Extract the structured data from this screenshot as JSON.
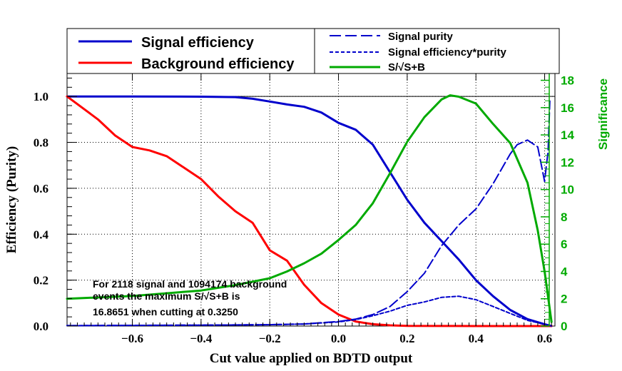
{
  "chart_data": {
    "type": "line",
    "title": "",
    "xlabel": "Cut value applied on BDTD output",
    "ylabel": "Efficiency (Purity)",
    "ylabel_right": "Significance",
    "xlim": [
      -0.79,
      0.63
    ],
    "ylim": [
      0,
      1.1
    ],
    "ylim_right": [
      0,
      18.5
    ],
    "x_ticks": [
      -0.6,
      -0.4,
      -0.2,
      0.0,
      0.2,
      0.4,
      0.6
    ],
    "x_tick_labels": [
      "−0.6",
      "−0.4",
      "−0.2",
      "0.0",
      "0.2",
      "0.4",
      "0.6"
    ],
    "y_ticks": [
      0.0,
      0.2,
      0.4,
      0.6,
      0.8,
      1.0
    ],
    "y_tick_labels": [
      "0.0",
      "0.2",
      "0.4",
      "0.6",
      "0.8",
      "1.0"
    ],
    "y_right_ticks": [
      0,
      2,
      4,
      6,
      8,
      10,
      12,
      14,
      16,
      18
    ],
    "y_right_tick_labels": [
      "0",
      "2",
      "4",
      "6",
      "8",
      "10",
      "12",
      "14",
      "16",
      "18"
    ],
    "grid": true,
    "reference_line_y": 1.0,
    "legend": [
      {
        "label": "Signal efficiency",
        "color": "#0000cc",
        "style": "solid"
      },
      {
        "label": "Background efficiency",
        "color": "#ff0000",
        "style": "solid"
      },
      {
        "label": "Signal purity",
        "color": "#0000cc",
        "style": "longdash"
      },
      {
        "label": "Signal efficiency*purity",
        "color": "#0000cc",
        "style": "shortdash"
      },
      {
        "label": "S/√S+B",
        "color": "#00aa00",
        "style": "solid"
      }
    ],
    "annotation": [
      "For 2118 signal and 1094174 background",
      "events the maximum S/√S+B is",
      "16.8651 when cutting at 0.3250"
    ],
    "series": [
      {
        "name": "Signal efficiency",
        "axis": "left",
        "color": "#0000cc",
        "x": [
          -0.79,
          -0.6,
          -0.4,
          -0.3,
          -0.25,
          -0.2,
          -0.15,
          -0.1,
          -0.05,
          0.0,
          0.05,
          0.1,
          0.15,
          0.2,
          0.25,
          0.3,
          0.35,
          0.4,
          0.45,
          0.5,
          0.55,
          0.6,
          0.62
        ],
        "y": [
          1.0,
          1.0,
          0.999,
          0.997,
          0.99,
          0.978,
          0.965,
          0.955,
          0.93,
          0.885,
          0.855,
          0.79,
          0.67,
          0.55,
          0.45,
          0.37,
          0.29,
          0.2,
          0.13,
          0.07,
          0.03,
          0.008,
          0.0
        ]
      },
      {
        "name": "Background efficiency",
        "axis": "left",
        "color": "#ff0000",
        "x": [
          -0.79,
          -0.7,
          -0.65,
          -0.6,
          -0.55,
          -0.5,
          -0.45,
          -0.4,
          -0.35,
          -0.3,
          -0.25,
          -0.2,
          -0.15,
          -0.1,
          -0.05,
          0.0,
          0.05,
          0.1,
          0.15,
          0.2,
          0.3,
          0.4,
          0.5,
          0.62
        ],
        "y": [
          1.0,
          0.9,
          0.83,
          0.78,
          0.765,
          0.74,
          0.69,
          0.64,
          0.565,
          0.5,
          0.45,
          0.33,
          0.285,
          0.18,
          0.1,
          0.05,
          0.02,
          0.008,
          0.003,
          0.001,
          0.0003,
          0.0001,
          0.0,
          0.0
        ]
      },
      {
        "name": "Signal purity",
        "axis": "left",
        "color": "#0000cc",
        "x": [
          -0.79,
          -0.6,
          -0.4,
          -0.2,
          -0.1,
          0.0,
          0.05,
          0.1,
          0.15,
          0.2,
          0.25,
          0.3,
          0.35,
          0.4,
          0.45,
          0.5,
          0.52,
          0.55,
          0.58,
          0.6,
          0.605,
          0.61,
          0.615
        ],
        "y": [
          0.002,
          0.003,
          0.004,
          0.006,
          0.009,
          0.02,
          0.03,
          0.05,
          0.085,
          0.15,
          0.23,
          0.35,
          0.44,
          0.51,
          0.62,
          0.75,
          0.79,
          0.81,
          0.78,
          0.63,
          0.7,
          0.76,
          0.98
        ]
      },
      {
        "name": "Signal efficiency*purity",
        "axis": "left",
        "color": "#0000cc",
        "x": [
          -0.79,
          -0.4,
          -0.2,
          -0.1,
          0.0,
          0.05,
          0.1,
          0.15,
          0.2,
          0.25,
          0.3,
          0.35,
          0.4,
          0.45,
          0.5,
          0.55,
          0.6,
          0.62
        ],
        "y": [
          0.002,
          0.004,
          0.006,
          0.009,
          0.018,
          0.028,
          0.045,
          0.065,
          0.09,
          0.105,
          0.125,
          0.13,
          0.115,
          0.085,
          0.055,
          0.025,
          0.008,
          0.0
        ]
      },
      {
        "name": "S/√S+B",
        "axis": "right",
        "color": "#00aa00",
        "x": [
          -0.79,
          -0.6,
          -0.4,
          -0.3,
          -0.2,
          -0.15,
          -0.1,
          -0.05,
          0.0,
          0.05,
          0.1,
          0.15,
          0.2,
          0.25,
          0.3,
          0.325,
          0.35,
          0.4,
          0.45,
          0.5,
          0.55,
          0.58,
          0.6,
          0.62
        ],
        "y": [
          2.0,
          2.2,
          2.6,
          3.0,
          3.5,
          4.0,
          4.6,
          5.3,
          6.3,
          7.4,
          9.0,
          11.2,
          13.5,
          15.3,
          16.6,
          16.9,
          16.8,
          16.3,
          14.8,
          13.4,
          10.5,
          7.0,
          4.0,
          0.3
        ]
      }
    ]
  }
}
